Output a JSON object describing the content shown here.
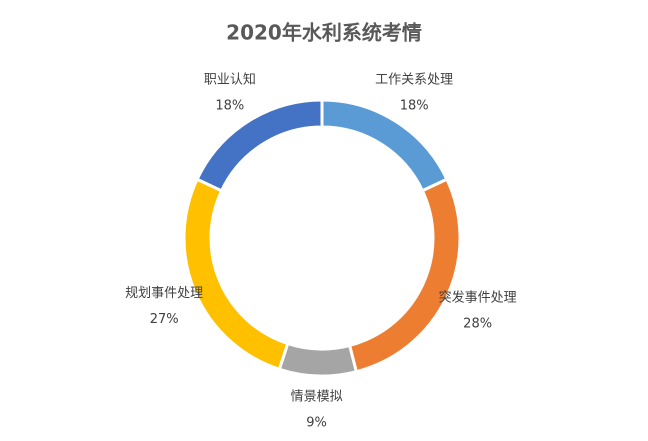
{
  "chart_data": {
    "type": "doughnut",
    "title": "2020年水利系统考情",
    "categories": [
      "工作关系处理",
      "突发事件处理",
      "情景模拟",
      "规划事件处理",
      "职业认知"
    ],
    "values": [
      18,
      28,
      9,
      27,
      18
    ],
    "value_labels": [
      "18%",
      "28%",
      "9%",
      "27%",
      "18%"
    ],
    "colors": [
      "#5b9bd5",
      "#ed7d31",
      "#a5a5a5",
      "#ffc000",
      "#4472c4"
    ]
  }
}
